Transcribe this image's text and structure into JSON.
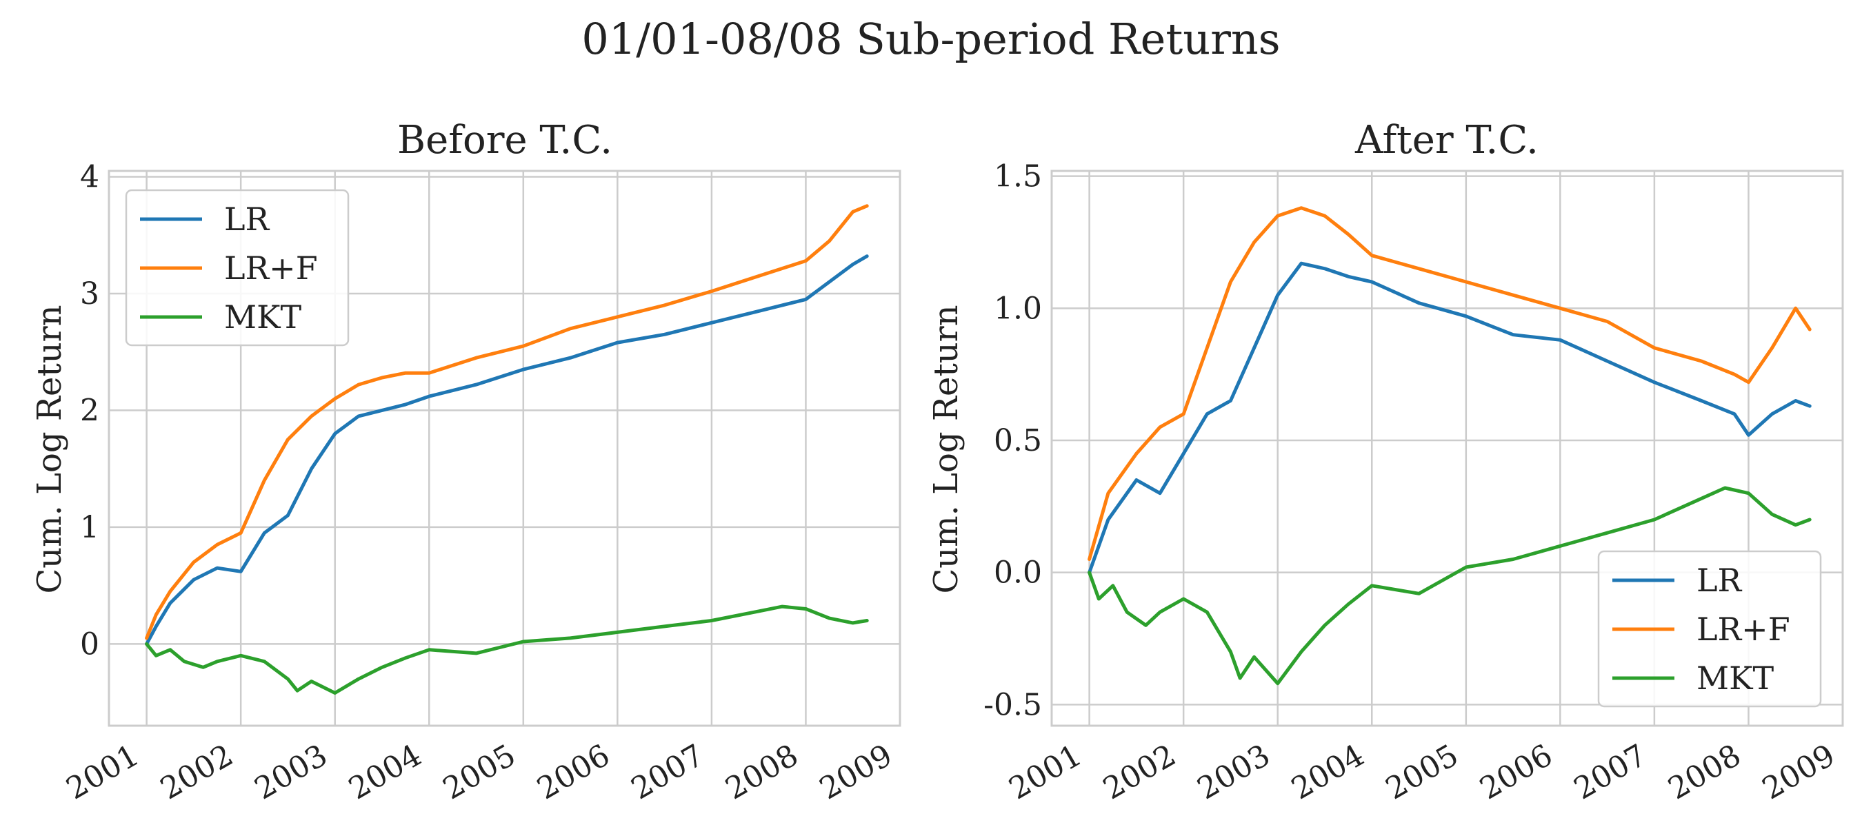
{
  "figure": {
    "title": "01/01-08/08 Sub-period Returns"
  },
  "chart_data": [
    {
      "type": "line",
      "title": "Before T.C.",
      "xlabel": "",
      "ylabel": "Cum. Log Return",
      "xlim": [
        2000.6,
        2009.0
      ],
      "ylim": [
        -0.7,
        4.05
      ],
      "yticks": [
        0,
        1,
        2,
        3,
        4
      ],
      "ytick_labels": [
        "0",
        "1",
        "2",
        "3",
        "4"
      ],
      "xticks": [
        2001,
        2002,
        2003,
        2004,
        2005,
        2006,
        2007,
        2008,
        2009
      ],
      "xtick_labels": [
        "2001",
        "2002",
        "2003",
        "2004",
        "2005",
        "2006",
        "2007",
        "2008",
        "2009"
      ],
      "grid": true,
      "legend": "upper-left",
      "series": [
        {
          "name": "LR",
          "color": "#1f77b4",
          "x": [
            2001.0,
            2001.1,
            2001.25,
            2001.5,
            2001.75,
            2002.0,
            2002.25,
            2002.5,
            2002.75,
            2003.0,
            2003.25,
            2003.5,
            2003.75,
            2004.0,
            2004.5,
            2005.0,
            2005.5,
            2006.0,
            2006.5,
            2007.0,
            2007.5,
            2008.0,
            2008.25,
            2008.5,
            2008.65
          ],
          "y": [
            0.0,
            0.15,
            0.35,
            0.55,
            0.65,
            0.62,
            0.95,
            1.1,
            1.5,
            1.8,
            1.95,
            2.0,
            2.05,
            2.12,
            2.22,
            2.35,
            2.45,
            2.58,
            2.65,
            2.75,
            2.85,
            2.95,
            3.1,
            3.25,
            3.32
          ]
        },
        {
          "name": "LR+F",
          "color": "#ff7f0e",
          "x": [
            2001.0,
            2001.1,
            2001.25,
            2001.5,
            2001.75,
            2002.0,
            2002.25,
            2002.5,
            2002.75,
            2003.0,
            2003.25,
            2003.5,
            2003.75,
            2004.0,
            2004.5,
            2005.0,
            2005.5,
            2006.0,
            2006.5,
            2007.0,
            2007.5,
            2008.0,
            2008.25,
            2008.5,
            2008.65
          ],
          "y": [
            0.05,
            0.25,
            0.45,
            0.7,
            0.85,
            0.95,
            1.4,
            1.75,
            1.95,
            2.1,
            2.22,
            2.28,
            2.32,
            2.32,
            2.45,
            2.55,
            2.7,
            2.8,
            2.9,
            3.02,
            3.15,
            3.28,
            3.45,
            3.7,
            3.75
          ]
        },
        {
          "name": "MKT",
          "color": "#2ca02c",
          "x": [
            2001.0,
            2001.1,
            2001.25,
            2001.4,
            2001.6,
            2001.75,
            2002.0,
            2002.25,
            2002.5,
            2002.6,
            2002.75,
            2003.0,
            2003.25,
            2003.5,
            2003.75,
            2004.0,
            2004.5,
            2005.0,
            2005.5,
            2006.0,
            2006.5,
            2007.0,
            2007.5,
            2007.75,
            2008.0,
            2008.25,
            2008.5,
            2008.65
          ],
          "y": [
            0.0,
            -0.1,
            -0.05,
            -0.15,
            -0.2,
            -0.15,
            -0.1,
            -0.15,
            -0.3,
            -0.4,
            -0.32,
            -0.42,
            -0.3,
            -0.2,
            -0.12,
            -0.05,
            -0.08,
            0.02,
            0.05,
            0.1,
            0.15,
            0.2,
            0.28,
            0.32,
            0.3,
            0.22,
            0.18,
            0.2
          ]
        }
      ]
    },
    {
      "type": "line",
      "title": "After T.C.",
      "xlabel": "",
      "ylabel": "Cum. Log Return",
      "xlim": [
        2000.6,
        2009.0
      ],
      "ylim": [
        -0.58,
        1.52
      ],
      "yticks": [
        -0.5,
        0.0,
        0.5,
        1.0,
        1.5
      ],
      "ytick_labels": [
        "-0.5",
        "0.0",
        "0.5",
        "1.0",
        "1.5"
      ],
      "xticks": [
        2001,
        2002,
        2003,
        2004,
        2005,
        2006,
        2007,
        2008,
        2009
      ],
      "xtick_labels": [
        "2001",
        "2002",
        "2003",
        "2004",
        "2005",
        "2006",
        "2007",
        "2008",
        "2009"
      ],
      "grid": true,
      "legend": "lower-right",
      "series": [
        {
          "name": "LR",
          "color": "#1f77b4",
          "x": [
            2001.0,
            2001.2,
            2001.5,
            2001.75,
            2002.0,
            2002.25,
            2002.5,
            2002.75,
            2003.0,
            2003.25,
            2003.5,
            2003.75,
            2004.0,
            2004.5,
            2005.0,
            2005.5,
            2006.0,
            2006.5,
            2007.0,
            2007.5,
            2007.85,
            2008.0,
            2008.25,
            2008.5,
            2008.65
          ],
          "y": [
            0.0,
            0.2,
            0.35,
            0.3,
            0.45,
            0.6,
            0.65,
            0.85,
            1.05,
            1.17,
            1.15,
            1.12,
            1.1,
            1.02,
            0.97,
            0.9,
            0.88,
            0.8,
            0.72,
            0.65,
            0.6,
            0.52,
            0.6,
            0.65,
            0.63
          ]
        },
        {
          "name": "LR+F",
          "color": "#ff7f0e",
          "x": [
            2001.0,
            2001.2,
            2001.5,
            2001.75,
            2002.0,
            2002.25,
            2002.5,
            2002.75,
            2003.0,
            2003.25,
            2003.5,
            2003.75,
            2004.0,
            2004.5,
            2005.0,
            2005.5,
            2006.0,
            2006.5,
            2007.0,
            2007.5,
            2007.85,
            2008.0,
            2008.25,
            2008.5,
            2008.65
          ],
          "y": [
            0.05,
            0.3,
            0.45,
            0.55,
            0.6,
            0.85,
            1.1,
            1.25,
            1.35,
            1.38,
            1.35,
            1.28,
            1.2,
            1.15,
            1.1,
            1.05,
            1.0,
            0.95,
            0.85,
            0.8,
            0.75,
            0.72,
            0.85,
            1.0,
            0.92
          ]
        },
        {
          "name": "MKT",
          "color": "#2ca02c",
          "x": [
            2001.0,
            2001.1,
            2001.25,
            2001.4,
            2001.6,
            2001.75,
            2002.0,
            2002.25,
            2002.5,
            2002.6,
            2002.75,
            2003.0,
            2003.25,
            2003.5,
            2003.75,
            2004.0,
            2004.5,
            2005.0,
            2005.5,
            2006.0,
            2006.5,
            2007.0,
            2007.5,
            2007.75,
            2008.0,
            2008.25,
            2008.5,
            2008.65
          ],
          "y": [
            0.0,
            -0.1,
            -0.05,
            -0.15,
            -0.2,
            -0.15,
            -0.1,
            -0.15,
            -0.3,
            -0.4,
            -0.32,
            -0.42,
            -0.3,
            -0.2,
            -0.12,
            -0.05,
            -0.08,
            0.02,
            0.05,
            0.1,
            0.15,
            0.2,
            0.28,
            0.32,
            0.3,
            0.22,
            0.18,
            0.2
          ]
        }
      ]
    }
  ]
}
